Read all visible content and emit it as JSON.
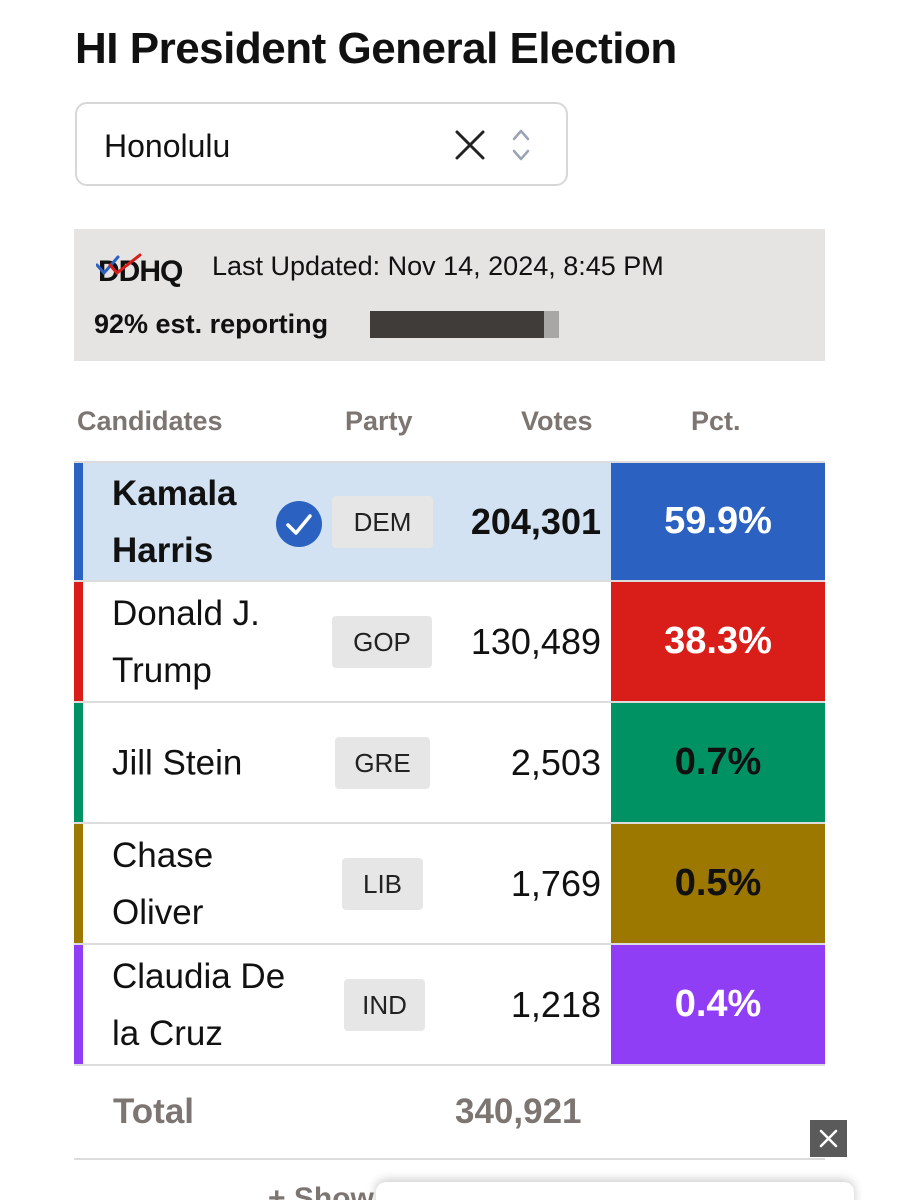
{
  "page": {
    "title": "HI President General Election"
  },
  "filter": {
    "selected": "Honolulu"
  },
  "info": {
    "logo_text": "DDHQ",
    "last_updated": "Last Updated: Nov 14, 2024, 8:45 PM",
    "reporting_label": "92% est. reporting",
    "reporting_fraction": 0.92
  },
  "table": {
    "headers": {
      "candidates": "Candidates",
      "party": "Party",
      "votes": "Votes",
      "pct": "Pct."
    },
    "rows": [
      {
        "name": "Kamala Harris",
        "party": "DEM",
        "votes": "204,301",
        "pct": "59.9%",
        "color": "#2b62c1",
        "pct_text_color": "#ffffff",
        "highlight": "#d3e2f2"
      },
      {
        "name": "Donald J. Trump",
        "party": "GOP",
        "votes": "130,489",
        "pct": "38.3%",
        "color": "#d91e1a",
        "pct_text_color": "#ffffff"
      },
      {
        "name": "Jill Stein",
        "party": "GRE",
        "votes": "2,503",
        "pct": "0.7%",
        "color": "#009262",
        "pct_text_color": "#111111"
      },
      {
        "name": "Chase Oliver",
        "party": "LIB",
        "votes": "1,769",
        "pct": "0.5%",
        "color": "#9c7800",
        "pct_text_color": "#111111"
      },
      {
        "name": "Claudia De la Cruz",
        "party": "IND",
        "votes": "1,218",
        "pct": "0.4%",
        "color": "#8f3ef6",
        "pct_text_color": "#ffffff"
      }
    ],
    "total_label": "Total",
    "total_votes": "340,921"
  },
  "footer": {
    "show_more": "+ Show"
  },
  "icons": {
    "clear": "close-icon",
    "select": "updown-chevron-icon",
    "winner": "check-circle-icon",
    "dismiss": "close-icon"
  }
}
